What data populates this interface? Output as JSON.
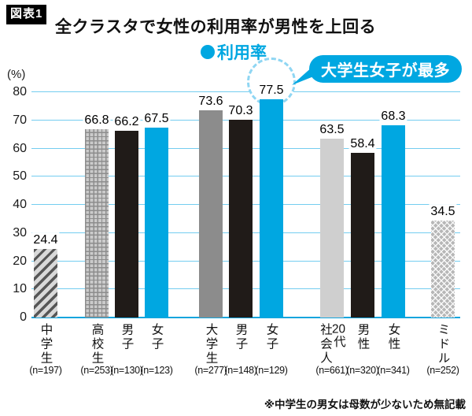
{
  "header": {
    "badge": "図表1",
    "title": "全クラスタで女性の利用率が男性を上回る"
  },
  "legend": {
    "label": "利用率",
    "color": "#00a7e1"
  },
  "callout": {
    "text": "大学生女子が最多"
  },
  "footnote": {
    "text": "※中学生の男女は母数が少ないため無記載"
  },
  "chart_data": {
    "type": "bar",
    "title": "利用率",
    "unit_label": "(%)",
    "ylim": [
      0,
      80
    ],
    "ytick_step": 10,
    "grid": true,
    "categories": [
      "中学生",
      "高校生",
      "男子",
      "女子",
      "大学生",
      "男子",
      "女子",
      "20代\n社会人",
      "男性",
      "女性",
      "ミドル"
    ],
    "values": [
      24.4,
      66.8,
      66.2,
      67.5,
      73.6,
      70.3,
      77.5,
      63.5,
      58.4,
      68.3,
      34.5
    ],
    "n": [
      197,
      253,
      130,
      123,
      277,
      148,
      129,
      661,
      320,
      341,
      252
    ],
    "n_label_format": "(n=###)",
    "bar_styles": [
      "hatch-diagonal",
      "hatch-grid",
      "black",
      "cyan",
      "gray",
      "black",
      "cyan",
      "lightgray",
      "black",
      "cyan",
      "hatch-cross"
    ],
    "highlight_index": 6,
    "highlight_note": "大学生女子が最多",
    "colors": {
      "cyan": "#00a7e1",
      "black": "#201b18",
      "gray": "#8c8c8c",
      "lightgray": "#cfcfcf",
      "grid": "#74cdf0",
      "baseline": "#14a5dd",
      "highlight_ring": "#8fd6f3"
    },
    "legend_position": "top-center"
  }
}
